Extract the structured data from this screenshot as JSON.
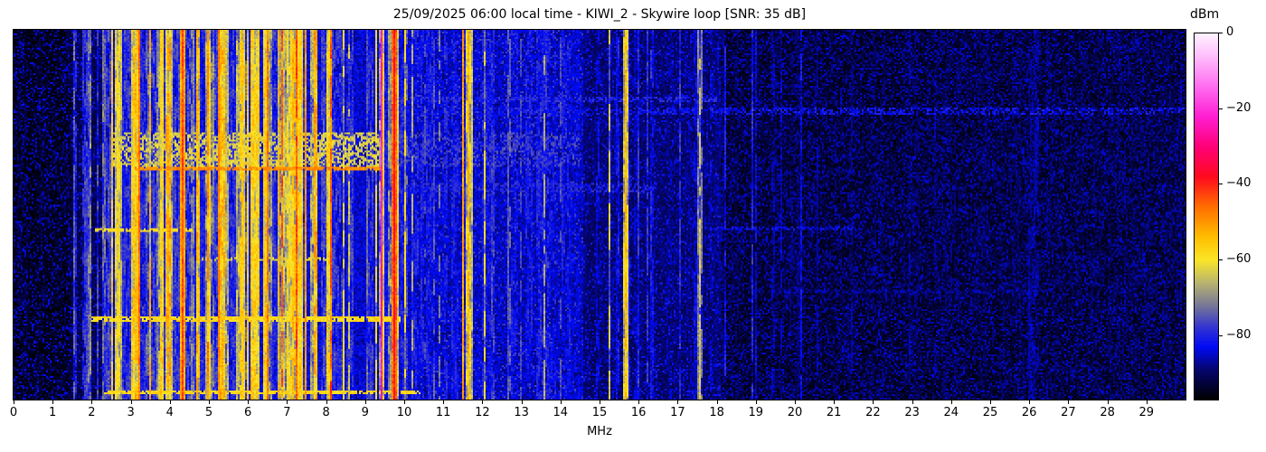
{
  "title": "25/09/2025 06:00 local time - KIWI_2 - Skywire loop [SNR: 35 dB]",
  "xlabel": "MHz",
  "x_tick_labels": [
    "0",
    "1",
    "2",
    "3",
    "4",
    "5",
    "6",
    "7",
    "8",
    "9",
    "10",
    "11",
    "12",
    "13",
    "14",
    "15",
    "16",
    "17",
    "18",
    "19",
    "20",
    "21",
    "22",
    "23",
    "24",
    "25",
    "26",
    "27",
    "28",
    "29"
  ],
  "colorbar": {
    "label": "dBm",
    "range_dbm": [
      -97,
      0
    ],
    "ticks": [
      {
        "label": "0",
        "value": 0
      },
      {
        "label": "−20",
        "value": -20
      },
      {
        "label": "−40",
        "value": -40
      },
      {
        "label": "−60",
        "value": -60
      },
      {
        "label": "−80",
        "value": -80
      }
    ]
  },
  "chart_data": {
    "type": "heatmap",
    "subtype": "radio-spectrogram-waterfall",
    "title": "25/09/2025 06:00 local time - KIWI_2 - Skywire loop [SNR: 35 dB]",
    "xlabel": "MHz",
    "x_range_mhz": [
      0,
      30
    ],
    "x_ticks_mhz": [
      0,
      1,
      2,
      3,
      4,
      5,
      6,
      7,
      8,
      9,
      10,
      11,
      12,
      13,
      14,
      15,
      16,
      17,
      18,
      19,
      20,
      21,
      22,
      23,
      24,
      25,
      26,
      27,
      28,
      29
    ],
    "y_axis": "time (waterfall rows, unlabeled)",
    "colorbar_label": "dBm",
    "colorbar_ticks_dbm": [
      0,
      -20,
      -40,
      -60,
      -80
    ],
    "value_range_dbm": [
      -97,
      0
    ],
    "grid": false,
    "legend": false,
    "seed": 305419897,
    "colormap_stops": [
      [
        0,
        [
          255,
          242,
          255
        ]
      ],
      [
        -6,
        [
          255,
          190,
          252
        ]
      ],
      [
        -14,
        [
          255,
          110,
          240
        ]
      ],
      [
        -22,
        [
          255,
          30,
          210
        ]
      ],
      [
        -30,
        [
          255,
          0,
          120
        ]
      ],
      [
        -38,
        [
          255,
          10,
          30
        ]
      ],
      [
        -46,
        [
          255,
          110,
          0
        ]
      ],
      [
        -54,
        [
          255,
          190,
          0
        ]
      ],
      [
        -60,
        [
          250,
          230,
          40
        ]
      ],
      [
        -66,
        [
          185,
          180,
          110
        ]
      ],
      [
        -72,
        [
          120,
          120,
          150
        ]
      ],
      [
        -78,
        [
          50,
          50,
          210
        ]
      ],
      [
        -83,
        [
          0,
          10,
          245
        ]
      ],
      [
        -89,
        [
          5,
          5,
          110
        ]
      ],
      [
        -97,
        [
          0,
          0,
          0
        ]
      ]
    ],
    "noise_regions": [
      {
        "f0": 0.0,
        "f1": 1.5,
        "base": -95.5,
        "amp": 1.5,
        "speckle_p": 0.28,
        "speckle_level": -87,
        "speckle_amp": 5,
        "stripes": [
          [
            1.0,
            -95.5,
            4,
            9
          ]
        ]
      },
      {
        "f0": 1.5,
        "f1": 2.5,
        "base": -92.0,
        "amp": 2.5,
        "speckle_p": 0.15,
        "speckle_level": -84,
        "speckle_amp": 5,
        "stripes": [
          [
            0.55,
            -92,
            2,
            5
          ],
          [
            0.85,
            -78,
            1,
            2
          ],
          [
            1.0,
            -72,
            1,
            1
          ]
        ]
      },
      {
        "f0": 2.5,
        "f1": 8.15,
        "base": -84.0,
        "amp": 4.0,
        "speckle_p": 0.0,
        "speckle_level": -80,
        "speckle_amp": 0,
        "stripes": [
          [
            0.13,
            -89,
            1,
            2
          ],
          [
            0.38,
            -79,
            1,
            3
          ],
          [
            0.5,
            -73,
            1,
            2
          ],
          [
            0.6,
            -66,
            1,
            2
          ],
          [
            0.85,
            -58,
            1,
            3
          ],
          [
            0.94,
            -53,
            1,
            2
          ],
          [
            0.97,
            -47,
            1,
            1
          ],
          [
            1.0,
            -44,
            1,
            1
          ]
        ]
      },
      {
        "f0": 8.15,
        "f1": 10.3,
        "base": -85.0,
        "amp": 4.0,
        "speckle_p": 0.0,
        "speckle_level": -80,
        "speckle_amp": 0,
        "stripes": [
          [
            0.3,
            -87,
            1,
            3
          ],
          [
            0.65,
            -80,
            2,
            4
          ],
          [
            0.78,
            -74,
            1,
            2
          ],
          [
            0.86,
            -67,
            1,
            1
          ],
          [
            0.97,
            -60,
            1,
            2
          ],
          [
            1.0,
            -54,
            1,
            1
          ]
        ]
      },
      {
        "f0": 10.3,
        "f1": 14.6,
        "base": -86.0,
        "amp": 3.5,
        "speckle_p": 0.15,
        "speckle_level": -80,
        "speckle_amp": 4,
        "stripes": [
          [
            0.3,
            -87,
            2,
            5
          ],
          [
            0.72,
            -82,
            2,
            4
          ],
          [
            0.88,
            -77,
            1,
            2
          ],
          [
            0.95,
            -71,
            1,
            1
          ],
          [
            1.0,
            -64,
            1,
            1
          ]
        ]
      },
      {
        "f0": 14.6,
        "f1": 18.1,
        "base": -90.0,
        "amp": 2.5,
        "speckle_p": 0.2,
        "speckle_level": -84,
        "speckle_amp": 4,
        "stripes": [
          [
            0.7,
            -90,
            2,
            6
          ],
          [
            0.88,
            -85,
            1,
            2
          ],
          [
            0.97,
            -80,
            1,
            1
          ],
          [
            1.0,
            -72,
            1,
            1
          ]
        ]
      },
      {
        "f0": 18.1,
        "f1": 30.0,
        "base": -94.5,
        "amp": 1.8,
        "speckle_p": 0.4,
        "speckle_level": -88,
        "speckle_amp": 4,
        "stripes": [
          [
            0.8,
            -94,
            3,
            8
          ],
          [
            0.95,
            -90,
            1,
            2
          ],
          [
            1.0,
            -85,
            1,
            1
          ]
        ]
      }
    ],
    "carriers": [
      {
        "f": 1.55,
        "level": -74,
        "w": 0.03,
        "seg": 0
      },
      {
        "f": 1.76,
        "level": -79,
        "w": 0.03,
        "seg": 0
      },
      {
        "f": 2.13,
        "level": -76,
        "w": 0.03,
        "seg": 0
      },
      {
        "f": 2.33,
        "level": -74,
        "w": 0.03,
        "seg": 0
      },
      {
        "f": 3.22,
        "level": -45,
        "w": 0.04,
        "seg": 0
      },
      {
        "f": 3.5,
        "level": -52,
        "w": 0.03,
        "seg": 1
      },
      {
        "f": 3.95,
        "level": -52,
        "w": 0.03,
        "seg": 1
      },
      {
        "f": 4.33,
        "level": -43,
        "w": 0.05,
        "seg": 0
      },
      {
        "f": 4.75,
        "level": -55,
        "w": 0.03,
        "seg": 1
      },
      {
        "f": 5.24,
        "level": -48,
        "w": 0.03,
        "seg": 0
      },
      {
        "f": 5.8,
        "level": -56,
        "w": 0.03,
        "seg": 1
      },
      {
        "f": 6.5,
        "level": -47,
        "w": 0.04,
        "seg": 0
      },
      {
        "f": 6.79,
        "level": -53,
        "w": 0.03,
        "seg": 1
      },
      {
        "f": 7.2,
        "level": -55,
        "w": 0.03,
        "seg": 1
      },
      {
        "f": 7.49,
        "level": -50,
        "w": 0.03,
        "seg": 0
      },
      {
        "f": 8.43,
        "level": -60,
        "w": 0.03,
        "seg": 1
      },
      {
        "f": 8.6,
        "level": -64,
        "w": 0.03,
        "seg": 1
      },
      {
        "f": 9.28,
        "level": -60,
        "w": 0.03,
        "seg": 1
      },
      {
        "f": 9.42,
        "level": -22,
        "w": 0.028,
        "seg": 0
      },
      {
        "f": 9.47,
        "level": -58,
        "w": 0.03,
        "seg": 0
      },
      {
        "f": 9.76,
        "level": -37,
        "w": 0.05,
        "seg": 0
      },
      {
        "f": 9.86,
        "level": -58,
        "w": 0.03,
        "seg": 0
      },
      {
        "f": 10.04,
        "level": -58,
        "w": 0.04,
        "seg": 1
      },
      {
        "f": 10.22,
        "level": -67,
        "w": 0.03,
        "seg": 1
      },
      {
        "f": 10.55,
        "level": -76,
        "w": 0.03,
        "seg": 1
      },
      {
        "f": 10.88,
        "level": -72,
        "w": 0.03,
        "seg": 1
      },
      {
        "f": 11.5,
        "level": -51,
        "w": 0.03,
        "seg": 0
      },
      {
        "f": 11.63,
        "level": -53,
        "w": 0.05,
        "seg": 0
      },
      {
        "f": 12.08,
        "level": -60,
        "w": 0.04,
        "seg": 1
      },
      {
        "f": 12.7,
        "level": -74,
        "w": 0.03,
        "seg": 1
      },
      {
        "f": 13.0,
        "level": -77,
        "w": 0.03,
        "seg": 1
      },
      {
        "f": 13.57,
        "level": -67,
        "w": 0.03,
        "seg": 1
      },
      {
        "f": 14.0,
        "level": -76,
        "w": 0.03,
        "seg": 1
      },
      {
        "f": 15.24,
        "level": -63,
        "w": 0.04,
        "seg": 1
      },
      {
        "f": 15.66,
        "level": -54,
        "w": 0.05,
        "seg": 0
      },
      {
        "f": 16.24,
        "level": -79,
        "w": 0.03,
        "seg": 0
      },
      {
        "f": 17.05,
        "level": -80,
        "w": 0.03,
        "seg": 0
      },
      {
        "f": 17.59,
        "level": -64,
        "w": 0.05,
        "seg": 1
      },
      {
        "f": 18.2,
        "level": -82,
        "w": 0.03,
        "seg": 0
      },
      {
        "f": 18.9,
        "level": -80,
        "w": 0.03,
        "seg": 0
      },
      {
        "f": 19.63,
        "level": -87,
        "w": 0.03,
        "seg": 0
      },
      {
        "f": 21.45,
        "level": -88,
        "w": 0.03,
        "seg": 0
      },
      {
        "f": 24.0,
        "level": -90,
        "w": 0.03,
        "seg": 1
      }
    ],
    "streaks": [
      [
        115,
        153,
        2.5,
        9.35,
        -63,
        0.55
      ],
      [
        153,
        157,
        3.1,
        9.4,
        -49,
        0.85
      ],
      [
        220,
        225,
        2.1,
        4.6,
        -59,
        0.8
      ],
      [
        253,
        256,
        4.8,
        8.15,
        -63,
        0.55
      ],
      [
        319,
        324,
        2.0,
        9.9,
        -58,
        0.85
      ],
      [
        400,
        405,
        2.3,
        10.4,
        -58,
        0.8
      ],
      [
        75,
        80,
        9.4,
        18.0,
        -80,
        0.55
      ],
      [
        86,
        95,
        9.3,
        30.0,
        -82,
        0.45
      ],
      [
        170,
        180,
        9.8,
        16.5,
        -80,
        0.5
      ],
      [
        218,
        223,
        17.7,
        21.5,
        -83,
        0.6
      ],
      [
        289,
        293,
        19.0,
        26.0,
        -87,
        0.5
      ],
      [
        115,
        153,
        9.35,
        14.5,
        -77,
        0.35
      ]
    ]
  }
}
